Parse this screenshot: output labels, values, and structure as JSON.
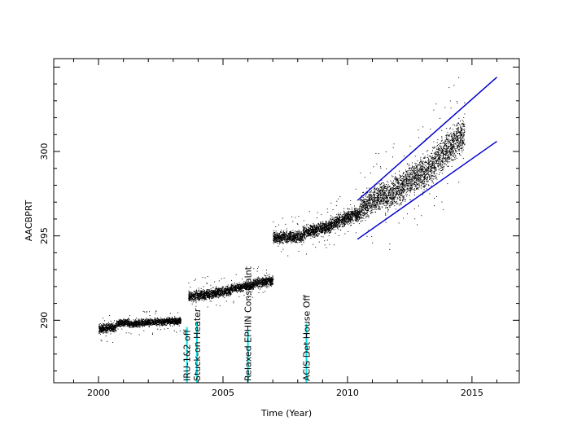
{
  "chart_data": {
    "type": "scatter",
    "xlabel": "Time (Year)",
    "ylabel": "AACBPRT",
    "xlim": [
      1998.2,
      2016.9
    ],
    "ylim": [
      286.3,
      305.5
    ],
    "xticks": [
      2000,
      2005,
      2010,
      2015
    ],
    "yticks": [
      290,
      295,
      300
    ],
    "grid": false,
    "colors": {
      "points": "#000000",
      "trend": "#0000cc",
      "events": "#00e0e0",
      "axes": "#000000"
    },
    "annotations": [
      {
        "text": "IRU-1&2 off",
        "x": 2003.55
      },
      {
        "text": "Stuck-on Heater",
        "x": 2003.95
      },
      {
        "text": "Relaxed EPHIN Constraint",
        "x": 2006.0
      },
      {
        "text": "ACIS Det House Off",
        "x": 2008.35
      }
    ],
    "event_markers": [
      {
        "x": 2003.55,
        "y_top": 289.6
      },
      {
        "x": 2003.95,
        "y_top": 289.9
      },
      {
        "x": 2006.0,
        "y_top": 289.4
      },
      {
        "x": 2008.35,
        "y_top": 289.8
      }
    ],
    "trend_lines": [
      {
        "x": [
          2010.4,
          2016.0
        ],
        "y": [
          297.1,
          304.4
        ]
      },
      {
        "x": [
          2010.4,
          2016.0
        ],
        "y": [
          294.8,
          300.6
        ]
      }
    ],
    "data_bands": [
      {
        "x": [
          2000.0,
          2000.7
        ],
        "center": [
          289.5,
          289.6
        ],
        "spread": 0.3
      },
      {
        "x": [
          2000.7,
          2001.2
        ],
        "center": [
          289.8,
          289.9
        ],
        "spread": 0.25
      },
      {
        "x": [
          2001.2,
          2002.0
        ],
        "center": [
          289.8,
          289.9
        ],
        "spread": 0.25
      },
      {
        "x": [
          2002.0,
          2003.3
        ],
        "center": [
          289.9,
          290.0
        ],
        "spread": 0.25
      },
      {
        "x": [
          2003.6,
          2004.5
        ],
        "center": [
          291.4,
          291.6
        ],
        "spread": 0.35
      },
      {
        "x": [
          2004.5,
          2005.3
        ],
        "center": [
          291.6,
          291.8
        ],
        "spread": 0.35
      },
      {
        "x": [
          2005.3,
          2006.2
        ],
        "center": [
          291.9,
          292.1
        ],
        "spread": 0.3
      },
      {
        "x": [
          2006.2,
          2007.0
        ],
        "center": [
          292.2,
          292.4
        ],
        "spread": 0.35
      },
      {
        "x": [
          2007.0,
          2008.2
        ],
        "center": [
          294.9,
          295.0
        ],
        "spread": 0.4
      },
      {
        "x": [
          2008.2,
          2009.3
        ],
        "center": [
          295.2,
          295.6
        ],
        "spread": 0.45
      },
      {
        "x": [
          2009.3,
          2010.5
        ],
        "center": [
          295.7,
          296.4
        ],
        "spread": 0.5
      },
      {
        "x": [
          2010.5,
          2011.5
        ],
        "center": [
          296.6,
          297.6
        ],
        "spread": 0.9
      },
      {
        "x": [
          2011.5,
          2013.0
        ],
        "center": [
          297.2,
          298.9
        ],
        "spread": 1.1
      },
      {
        "x": [
          2013.0,
          2014.7
        ],
        "center": [
          298.6,
          301.2
        ],
        "spread": 1.2
      }
    ]
  }
}
